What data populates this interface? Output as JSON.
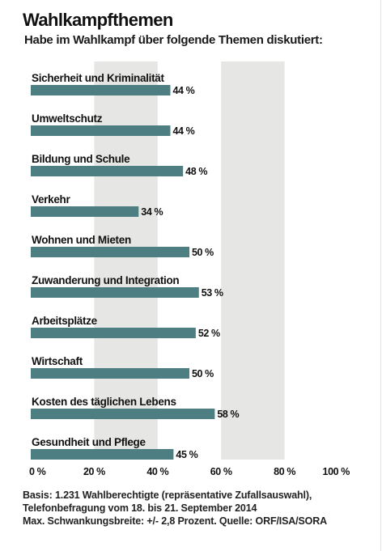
{
  "header": {
    "title": "Wahlkampfthemen",
    "subtitle": "Habe im Wahlkampf über folgende Themen diskutiert:"
  },
  "chart_data": {
    "type": "bar",
    "orientation": "horizontal",
    "categories": [
      "Sicherheit und Kriminalität",
      "Umweltschutz",
      "Bildung und Schule",
      "Verkehr",
      "Wohnen und Mieten",
      "Zuwanderung und Integration",
      "Arbeitsplätze",
      "Wirtschaft",
      "Kosten des täglichen Lebens",
      "Gesundheit und Pflege"
    ],
    "values": [
      44,
      44,
      48,
      34,
      50,
      53,
      52,
      50,
      58,
      45
    ],
    "value_labels": [
      "44 %",
      "44 %",
      "48 %",
      "34 %",
      "50 %",
      "53 %",
      "52 %",
      "50 %",
      "58 %",
      "45 %"
    ],
    "xlim": [
      0,
      100
    ],
    "ticks": [
      0,
      20,
      40,
      60,
      80,
      100
    ],
    "tick_labels": [
      "0 %",
      "20 %",
      "40 %",
      "60 %",
      "80 %",
      "100 %"
    ],
    "grid": "alternating vertical bands",
    "colors": {
      "bar": "#4d7f82",
      "band": "#e6e6e4",
      "text": "#111111"
    }
  },
  "footnote": {
    "line1": "Basis: 1.231 Wahlberechtigte (repräsentative Zufallsauswahl),",
    "line2": "Telefonbefragung vom 18. bis 21. September 2014",
    "line3": "Max. Schwankungsbreite: +/- 2,8 Prozent. Quelle: ORF/ISA/SORA"
  }
}
